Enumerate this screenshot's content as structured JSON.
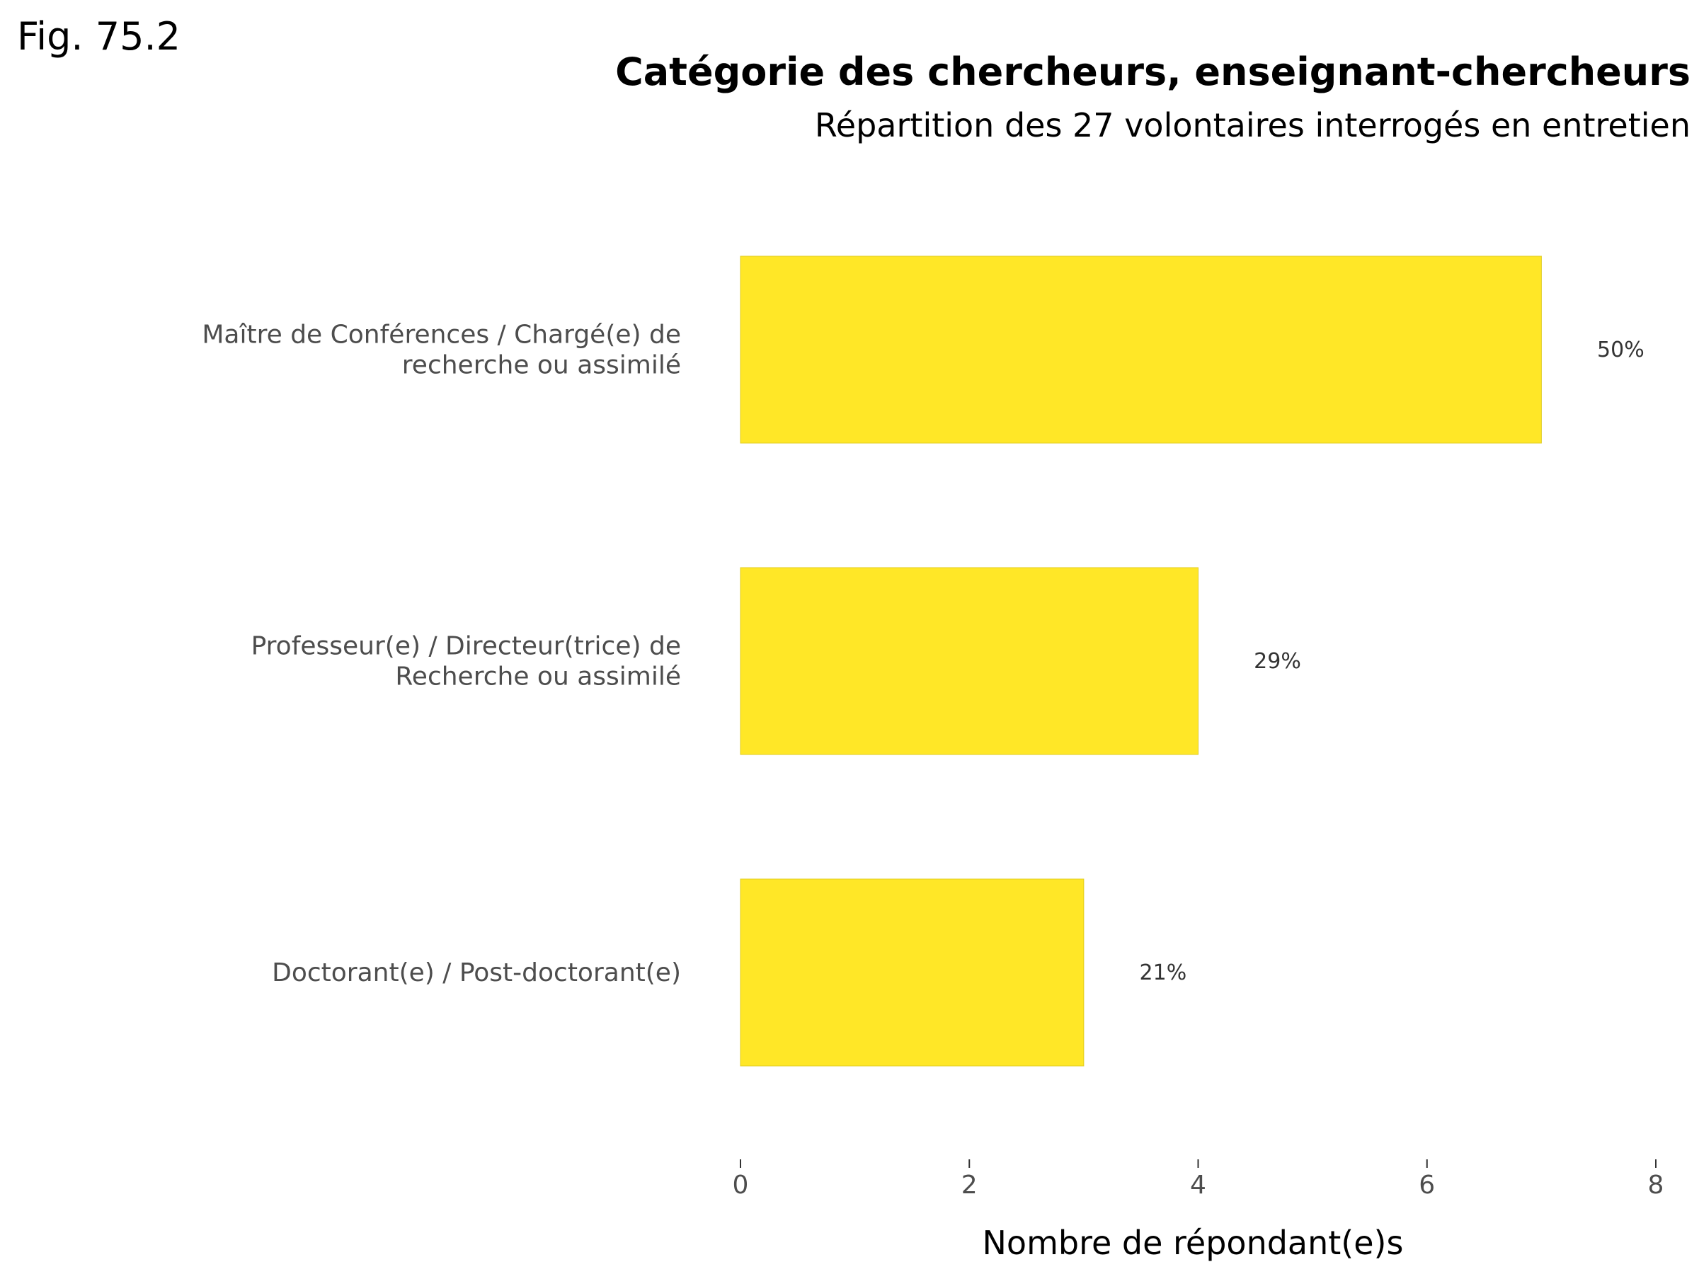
{
  "figure_label": "Fig. 75.2",
  "chart_data": {
    "type": "bar",
    "orientation": "horizontal",
    "title": "Catégorie des chercheurs, enseignant-chercheurs",
    "subtitle": "Répartition des 27 volontaires interrogés en entretien",
    "xlabel": "Nombre de répondant(e)s",
    "ylabel": "",
    "xlim": [
      0,
      8
    ],
    "xticks": [
      0,
      2,
      4,
      6,
      8
    ],
    "grid": false,
    "bar_color": "#FFE727",
    "categories": [
      [
        "Maître de Conférences / Chargé(e) de",
        "recherche ou assimilé"
      ],
      [
        "Professeur(e) / Directeur(trice) de",
        "Recherche ou assimilé"
      ],
      [
        "Doctorant(e) / Post-doctorant(e)"
      ]
    ],
    "values": [
      7,
      4,
      3
    ],
    "data_labels": [
      "50%",
      "29%",
      "21%"
    ]
  }
}
